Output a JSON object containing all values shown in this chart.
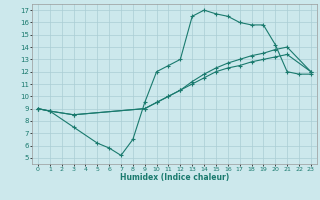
{
  "xlabel": "Humidex (Indice chaleur)",
  "background_color": "#cce8ec",
  "grid_color": "#aacdd4",
  "line_color": "#1a7a6e",
  "xlim": [
    -0.5,
    23.5
  ],
  "ylim": [
    4.5,
    17.5
  ],
  "xticks": [
    0,
    1,
    2,
    3,
    4,
    5,
    6,
    7,
    8,
    9,
    10,
    11,
    12,
    13,
    14,
    15,
    16,
    17,
    18,
    19,
    20,
    21,
    22,
    23
  ],
  "yticks": [
    5,
    6,
    7,
    8,
    9,
    10,
    11,
    12,
    13,
    14,
    15,
    16,
    17
  ],
  "line1_x": [
    0,
    1,
    3,
    5,
    6,
    7,
    8,
    9,
    10,
    11,
    12,
    13,
    14,
    15,
    16,
    17,
    18,
    19,
    20,
    21,
    22,
    23
  ],
  "line1_y": [
    9.0,
    8.8,
    7.5,
    6.2,
    5.8,
    5.2,
    6.5,
    9.5,
    12.0,
    12.5,
    13.0,
    16.5,
    17.0,
    16.7,
    16.5,
    16.0,
    15.8,
    15.8,
    14.2,
    12.0,
    11.8,
    11.8
  ],
  "line2_x": [
    0,
    1,
    3,
    9,
    10,
    11,
    12,
    13,
    14,
    15,
    16,
    17,
    18,
    19,
    20,
    21,
    23
  ],
  "line2_y": [
    9.0,
    8.8,
    8.5,
    9.0,
    9.5,
    10.0,
    10.5,
    11.0,
    11.5,
    12.0,
    12.3,
    12.5,
    12.8,
    13.0,
    13.2,
    13.4,
    12.0
  ],
  "line3_x": [
    0,
    1,
    3,
    9,
    10,
    11,
    12,
    13,
    14,
    15,
    16,
    17,
    18,
    19,
    20,
    21,
    23
  ],
  "line3_y": [
    9.0,
    8.8,
    8.5,
    9.0,
    9.5,
    10.0,
    10.5,
    11.2,
    11.8,
    12.3,
    12.7,
    13.0,
    13.3,
    13.5,
    13.8,
    14.0,
    12.0
  ]
}
